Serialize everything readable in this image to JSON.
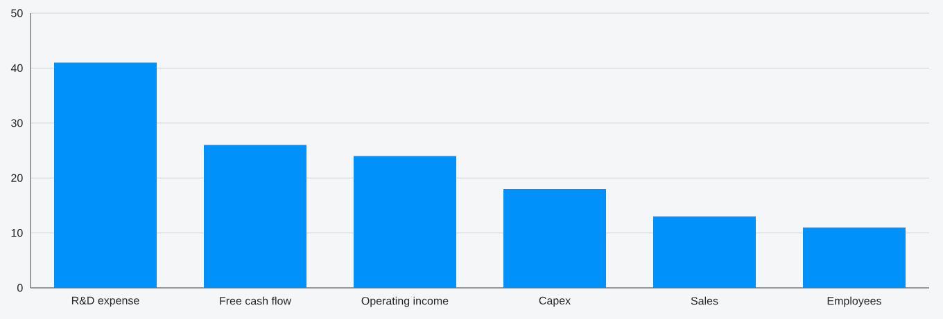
{
  "chart_data": {
    "type": "bar",
    "categories": [
      "R&D expense",
      "Free cash flow",
      "Operating income",
      "Capex",
      "Sales",
      "Employees"
    ],
    "values": [
      41,
      26,
      24,
      18,
      13,
      11
    ],
    "color": "#0091fb",
    "ylim": [
      0,
      50
    ],
    "yticks": [
      0,
      10,
      20,
      30,
      40,
      50
    ],
    "grid": "y"
  }
}
